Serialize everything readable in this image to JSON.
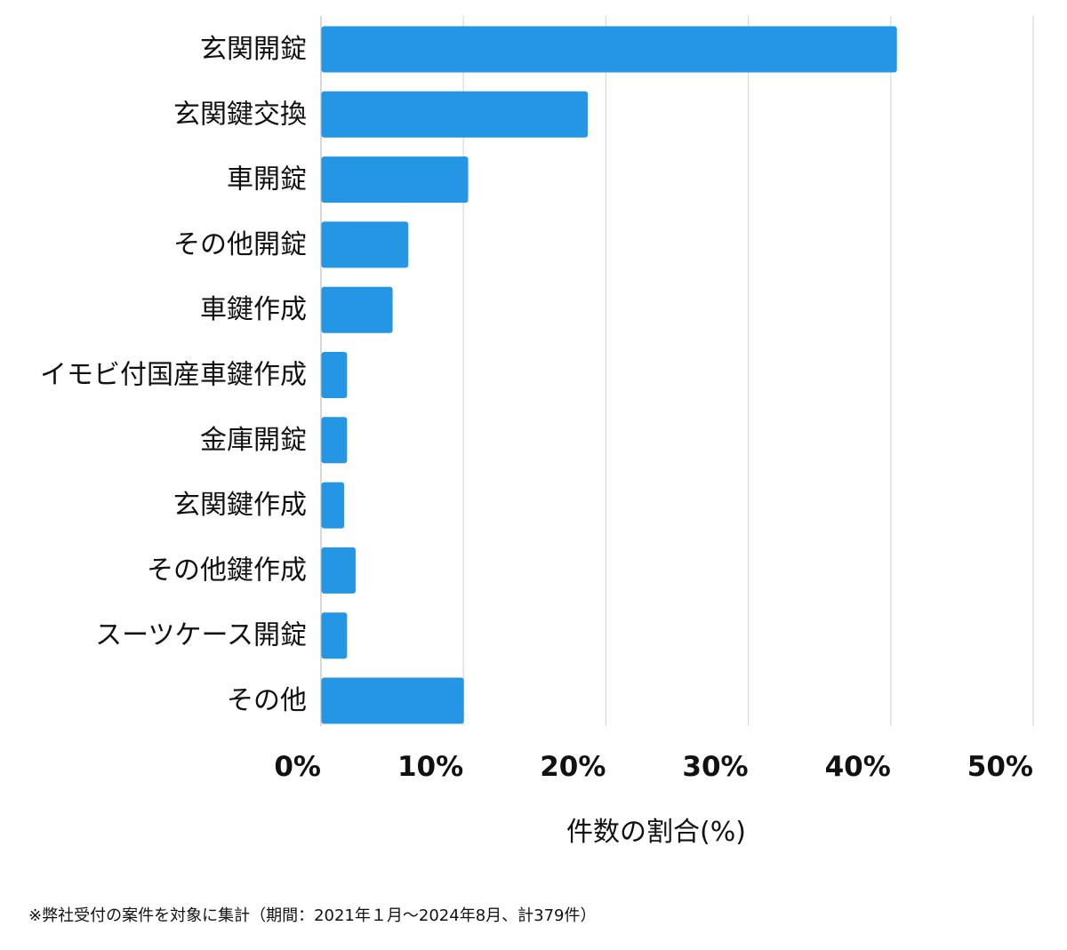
{
  "chart_data": {
    "type": "bar",
    "orientation": "horizontal",
    "categories": [
      "玄関開錠",
      "玄関鍵交換",
      "車開錠",
      "その他開錠",
      "車鍵作成",
      "イモビ付国産車鍵作成",
      "金庫開錠",
      "玄関鍵作成",
      "その他鍵作成",
      "スーツケース開錠",
      "その他"
    ],
    "values": [
      40.4,
      18.7,
      10.3,
      6.1,
      5.0,
      1.8,
      1.8,
      1.6,
      2.4,
      1.8,
      10.0
    ],
    "xlim": [
      0,
      50
    ],
    "xticks": [
      0,
      10,
      20,
      30,
      40,
      50
    ],
    "xtick_labels": [
      "0%",
      "10%",
      "20%",
      "30%",
      "40%",
      "50%"
    ],
    "xlabel": "件数の割合(%)",
    "ylabel": "",
    "grid": true,
    "bar_color": "#2596e4",
    "grid_color": "#d9d9d9"
  },
  "footnote": "※弊社受付の案件を対象に集計（期間：2021年１月〜2024年8月、計379件）"
}
